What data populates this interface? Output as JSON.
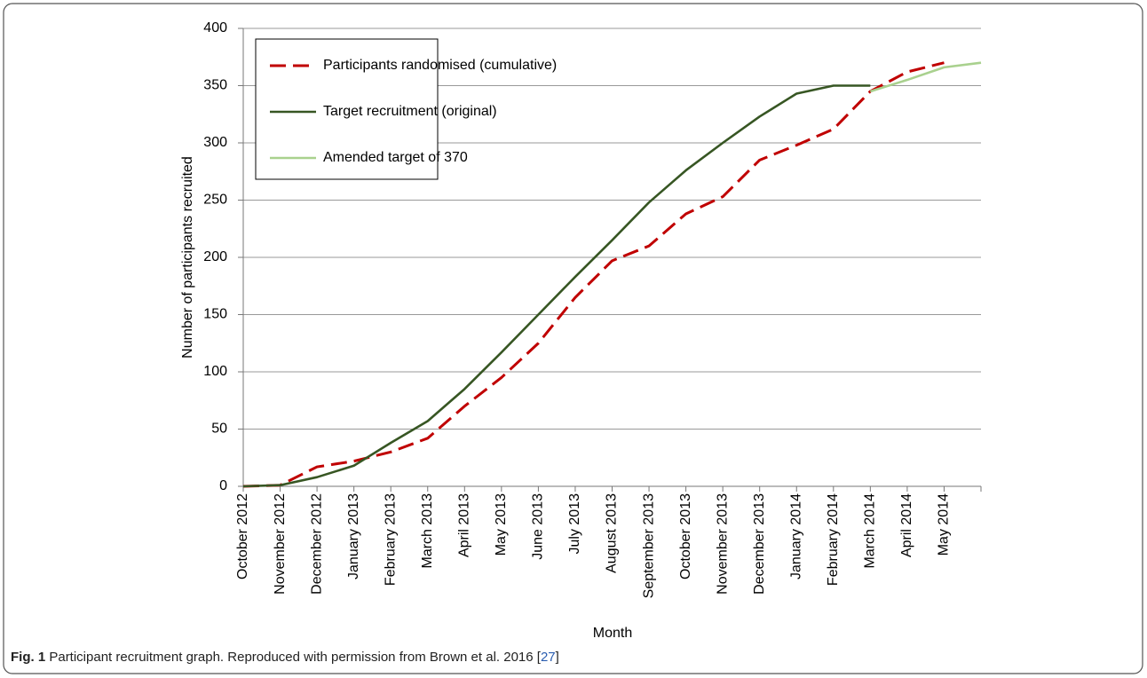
{
  "chart_data": {
    "type": "line",
    "y_label": "Number of participants recruited",
    "x_label": "Month",
    "categories": [
      "October 2012",
      "November 2012",
      "December 2012",
      "January 2013",
      "February 2013",
      "March 2013",
      "April 2013",
      "May 2013",
      "June 2013",
      "July 2013",
      "August 2013",
      "September 2013",
      "October 2013",
      "November 2013",
      "December 2013",
      "January 2014",
      "February 2014",
      "March 2014",
      "April 2014",
      "May 2014",
      null
    ],
    "series": [
      {
        "name": "Participants randomised (cumulative)",
        "color": "#c00000",
        "dashed": true,
        "values": [
          0,
          1,
          17,
          22,
          30,
          42,
          70,
          95,
          125,
          165,
          197,
          210,
          238,
          253,
          285,
          298,
          312,
          345,
          362,
          370,
          null
        ]
      },
      {
        "name": "Target recruitment (original)",
        "color": "#375623",
        "dashed": false,
        "values": [
          0,
          1,
          8,
          18,
          38,
          57,
          85,
          117,
          150,
          183,
          215,
          248,
          276,
          300,
          323,
          343,
          350,
          350,
          null,
          null,
          null
        ]
      },
      {
        "name": "Amended target of 370",
        "color": "#a9d18e",
        "dashed": false,
        "values": [
          null,
          null,
          null,
          null,
          null,
          null,
          null,
          null,
          null,
          null,
          null,
          null,
          null,
          null,
          null,
          null,
          null,
          345,
          355,
          366,
          370
        ]
      }
    ],
    "ylim": [
      0,
      400
    ],
    "yticks": [
      0,
      50,
      100,
      150,
      200,
      250,
      300,
      350,
      400
    ],
    "grid": true,
    "legend": "top-left"
  },
  "caption": {
    "label": "Fig. 1",
    "text": "Participant recruitment graph. Reproduced with permission from Brown et al. 2016 [",
    "ref": "27",
    "close": "]"
  }
}
